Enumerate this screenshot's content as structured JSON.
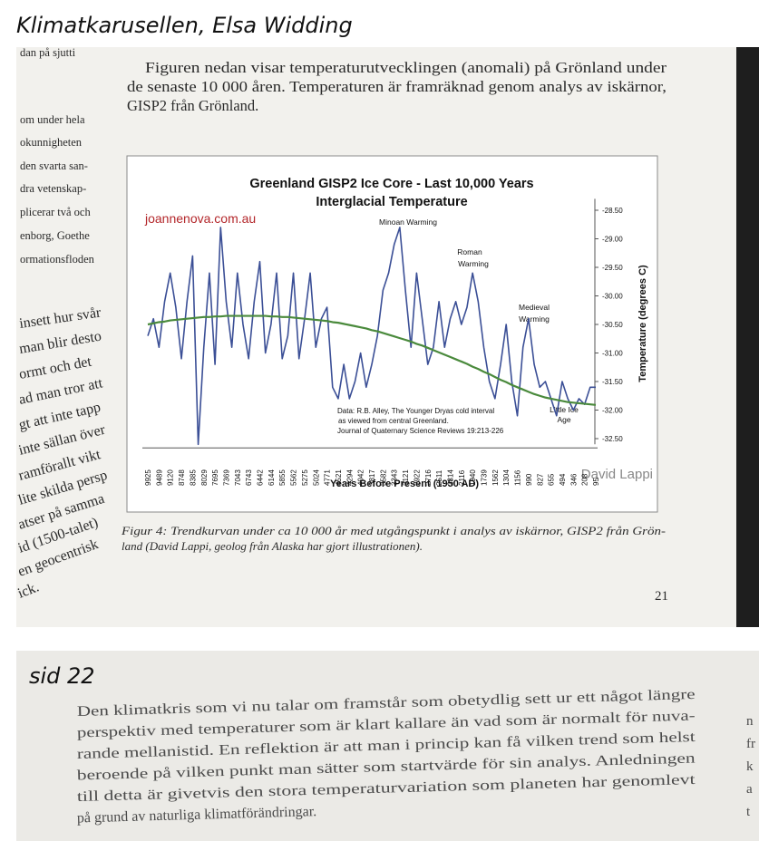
{
  "header": {
    "title": "Klimatkarusellen, Elsa Widding"
  },
  "page21": {
    "left_margin_lines": [
      "dan på sjutti",
      "om under hela",
      "okunnigheten",
      "den svarta san-",
      "dra vetenskap-",
      "plicerar två och",
      "enborg, Goethe",
      "ormationsfloden",
      "insett hur svår",
      "man blir desto",
      "ormt och det",
      "ad man tror att",
      "gt att inte tapp",
      "inte sällan över",
      "ramförallt vikt",
      "lite skilda persp",
      "atser på samma",
      "id (1500-talet)",
      "en geocentrisk",
      "ick."
    ],
    "paragraph": [
      "Figuren nedan visar temperaturutvecklingen (anomali) på Grönland under",
      "de senaste 10 000 åren. Temperaturen är framräknad genom analys av iskärnor,",
      "GISP2 från Grönland."
    ],
    "chart": {
      "type": "line",
      "title": "Greenland GISP2 Ice Core - Last 10,000 Years",
      "subtitle": "Interglacial Temperature",
      "x_label": "Years Before Present (1950 AD)",
      "y_label": "Temperature (degrees C)",
      "source_label": "joannenova.com.au",
      "author_label": "David Lappi",
      "annotations": [
        "Minoan Warming",
        "Roman",
        "Warming",
        "Medieval",
        "Warming",
        "Little Ice",
        "Age"
      ],
      "source_note": [
        "Data: R.B. Alley, The Younger Dryas cold interval",
        "as viewed from central Greenland.",
        "Journal of Quaternary Science Reviews 19:213-226"
      ],
      "categories": [
        "9925",
        null,
        "9489",
        null,
        "9120",
        null,
        "8748",
        null,
        "8385",
        null,
        "8029",
        null,
        "7695",
        null,
        "7369",
        null,
        "7043",
        null,
        "6743",
        null,
        "6442",
        null,
        "6144",
        null,
        "5855",
        null,
        "5562",
        null,
        "5275",
        null,
        "5024",
        null,
        "4771",
        null,
        "4521",
        null,
        "4294",
        null,
        "4042",
        null,
        "3817",
        null,
        "3582",
        null,
        "3343",
        null,
        "3121",
        null,
        "2922",
        null,
        "2716",
        null,
        "2511",
        null,
        "2314",
        null,
        "2116",
        null,
        "1940",
        null,
        "1739",
        null,
        "1562",
        null,
        "1304",
        null,
        "1156",
        null,
        "990",
        null,
        "827",
        null,
        "655",
        null,
        "494",
        null,
        "346",
        null,
        "208",
        null,
        "95"
      ],
      "series": [
        {
          "name": "GISP2 temperature",
          "color": "#3b4f96",
          "values": [
            -30.7,
            -30.4,
            -30.9,
            -30.1,
            -29.6,
            -30.2,
            -31.1,
            -30.1,
            -29.3,
            -32.6,
            -30.9,
            -29.6,
            -31.2,
            -28.8,
            -30.1,
            -30.9,
            -29.6,
            -30.5,
            -31.1,
            -30.1,
            -29.4,
            -31.0,
            -30.5,
            -29.6,
            -31.1,
            -30.7,
            -29.6,
            -31.1,
            -30.4,
            -29.6,
            -30.9,
            -30.4,
            -30.2,
            -31.6,
            -31.8,
            -31.2,
            -31.8,
            -31.5,
            -31.0,
            -31.6,
            -31.2,
            -30.7,
            -29.9,
            -29.6,
            -29.1,
            -28.8,
            -29.9,
            -30.9,
            -29.6,
            -30.4,
            -31.2,
            -30.9,
            -30.1,
            -30.9,
            -30.4,
            -30.1,
            -30.5,
            -30.2,
            -29.6,
            -30.1,
            -30.9,
            -31.5,
            -31.8,
            -31.2,
            -30.5,
            -31.5,
            -32.1,
            -30.9,
            -30.4,
            -31.2,
            -31.6,
            -31.5,
            -31.8,
            -32.1,
            -31.5,
            -31.8,
            -32.0,
            -31.8,
            -31.9,
            -31.6,
            -31.6
          ]
        },
        {
          "name": "Trend",
          "color": "#4a8a3c",
          "values": [
            -30.5,
            -30.48,
            -30.46,
            -30.45,
            -30.43,
            -30.42,
            -30.41,
            -30.4,
            -30.39,
            -30.38,
            -30.37,
            -30.37,
            -30.36,
            -30.36,
            -30.35,
            -30.35,
            -30.35,
            -30.35,
            -30.35,
            -30.35,
            -30.35,
            -30.35,
            -30.36,
            -30.36,
            -30.37,
            -30.37,
            -30.38,
            -30.39,
            -30.4,
            -30.41,
            -30.42,
            -30.43,
            -30.44,
            -30.46,
            -30.47,
            -30.49,
            -30.51,
            -30.53,
            -30.55,
            -30.57,
            -30.6,
            -30.62,
            -30.65,
            -30.68,
            -30.71,
            -30.74,
            -30.77,
            -30.8,
            -30.84,
            -30.87,
            -30.91,
            -30.95,
            -30.99,
            -31.03,
            -31.07,
            -31.11,
            -31.15,
            -31.19,
            -31.24,
            -31.28,
            -31.33,
            -31.37,
            -31.42,
            -31.47,
            -31.51,
            -31.56,
            -31.6,
            -31.64,
            -31.68,
            -31.72,
            -31.75,
            -31.78,
            -31.8,
            -31.82,
            -31.84,
            -31.86,
            -31.87,
            -31.88,
            -31.89,
            -31.9,
            -31.91
          ]
        }
      ],
      "ylim": [
        -32.6,
        -28.3
      ],
      "yticks": [
        {
          "value": -28.5,
          "label": "-28.50"
        },
        {
          "value": -29,
          "label": "-29.00"
        },
        {
          "value": -29.5,
          "label": "-29.50"
        },
        {
          "value": -30,
          "label": "-30.00"
        },
        {
          "value": -30.5,
          "label": "-30.50"
        },
        {
          "value": -31,
          "label": "-31.00"
        },
        {
          "value": -31.5,
          "label": "-31.50"
        },
        {
          "value": -32,
          "label": "-32.00"
        },
        {
          "value": -32.5,
          "label": "-32.50"
        }
      ],
      "y_axis_side": "right",
      "grid": false
    },
    "caption": [
      "Figur 4: Trendkurvan under ca 10 000 år med utgångspunkt i analys av iskärnor, GISP2 från Grön-",
      "land (David Lappi, geolog från Alaska har gjort illustrationen)."
    ],
    "page_number": "21"
  },
  "page22": {
    "heading": "sid 22",
    "paragraph": [
      "Den klimatkris som vi nu talar om framstår som obetydlig sett ur ett något längre",
      "perspektiv med temperaturer som är klart kallare än vad som är normalt för nuva-",
      "rande mellanistid. En reflektion är att man i princip kan få vilken trend som helst",
      "beroende på vilken punkt man sätter som startvärde för sin analys. Anledningen",
      "till detta är givetvis den stora temperaturvariation som planeten har genomlevt",
      "på grund av naturliga klimatförändringar."
    ],
    "right_column_fragments": [
      "n",
      "fr",
      "k",
      "a",
      "t"
    ]
  }
}
